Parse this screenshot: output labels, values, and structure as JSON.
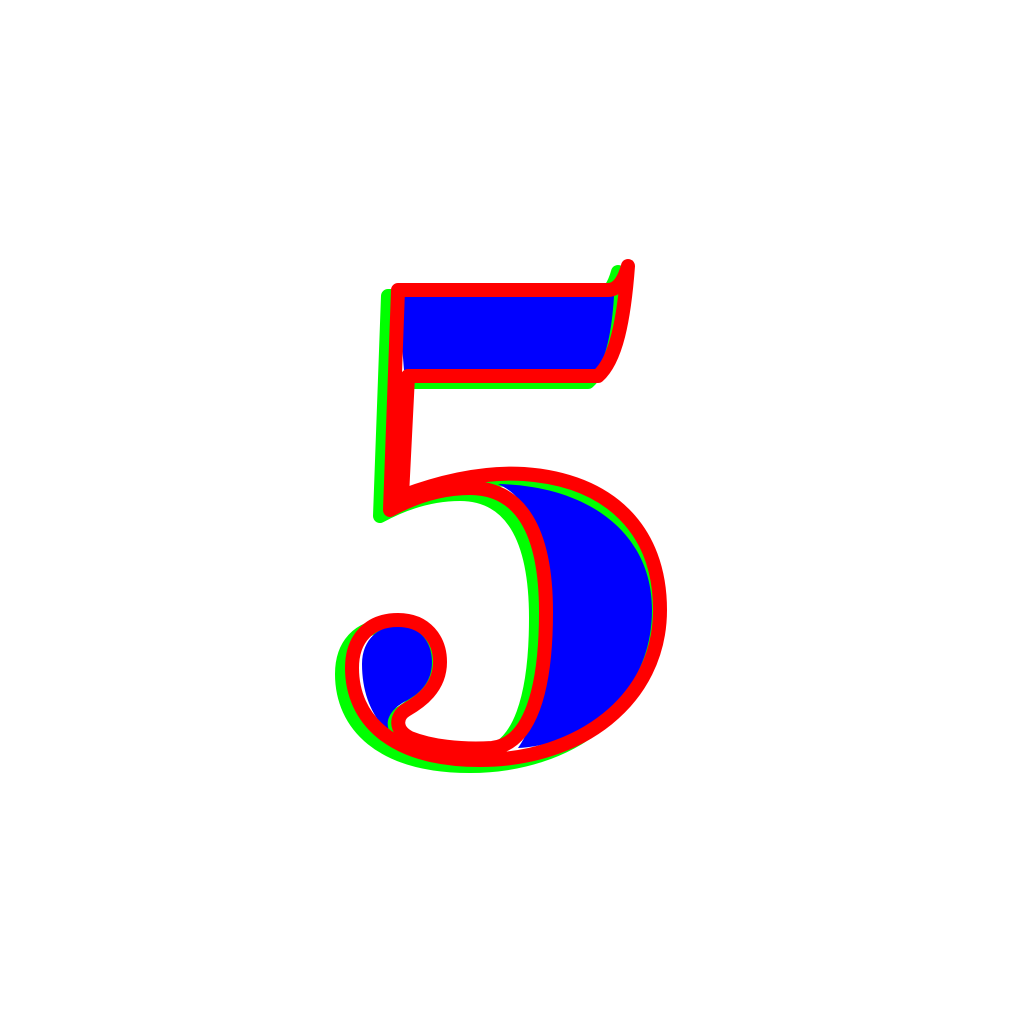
{
  "glyph": {
    "character": "5",
    "fill_color": "#0000ff",
    "outline_color": "#ff0000",
    "offset_outline_color": "#00ff00"
  },
  "background_color": "#ffffff"
}
